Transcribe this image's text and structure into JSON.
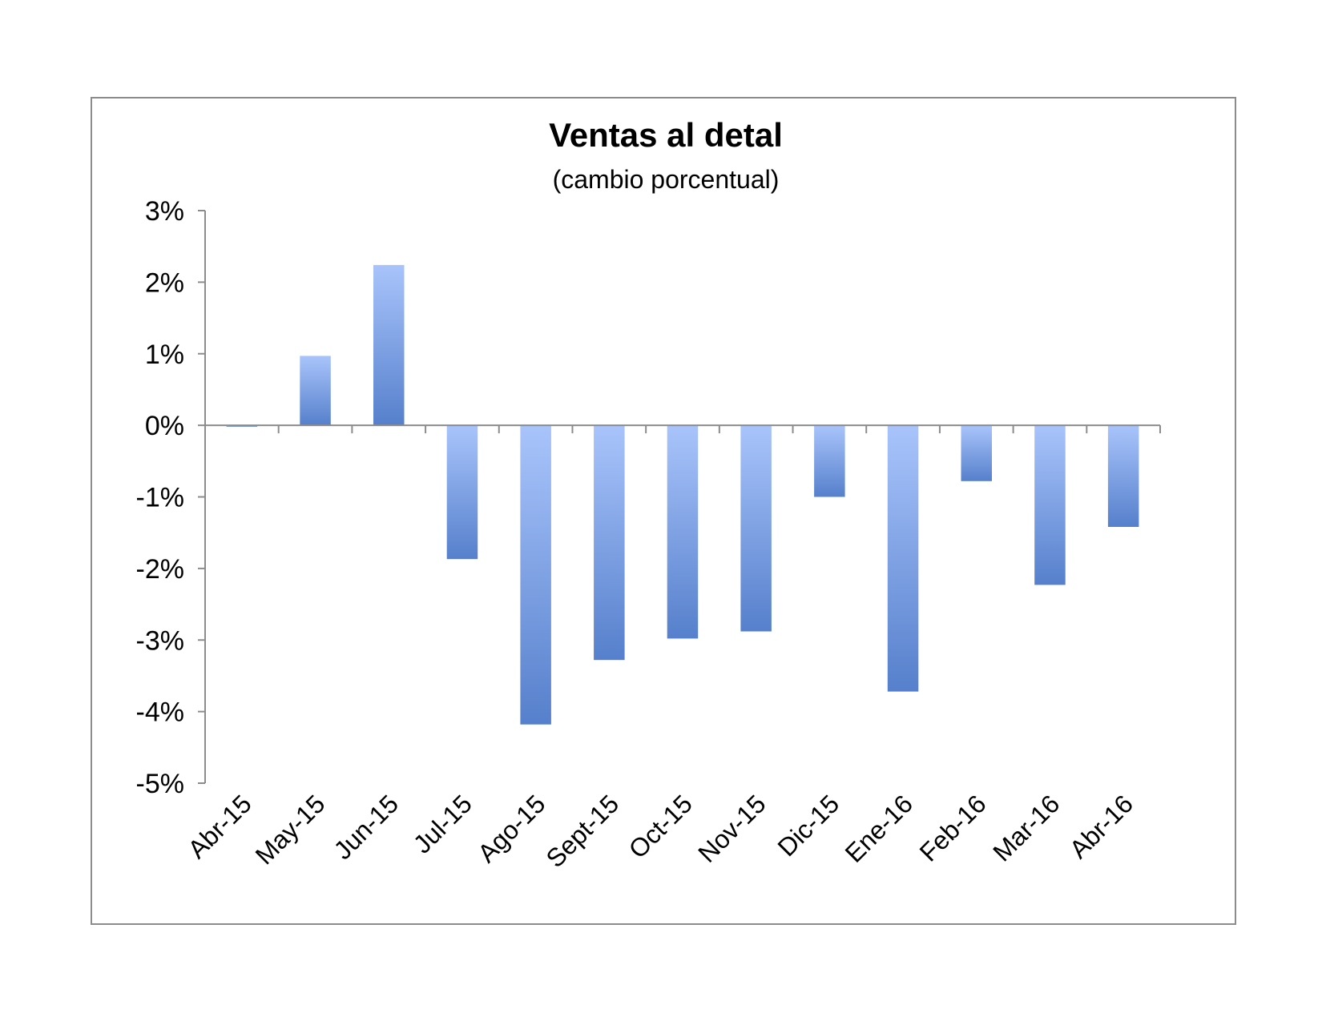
{
  "chart_data": {
    "type": "bar",
    "title": "Ventas al detal",
    "subtitle": "(cambio porcentual)",
    "xlabel": "",
    "ylabel": "",
    "categories": [
      "Abr-15",
      "May-15",
      "Jun-15",
      "Jul-15",
      "Ago-15",
      "Sept-15",
      "Oct-15",
      "Nov-15",
      "Dic-15",
      "Ene-16",
      "Feb-16",
      "Mar-16",
      "Abr-16"
    ],
    "values": [
      -0.02,
      0.97,
      2.24,
      -1.87,
      -4.18,
      -3.28,
      -2.98,
      -2.88,
      -1.0,
      -3.72,
      -0.78,
      -2.23,
      -1.42
    ],
    "ylim": [
      -5,
      3
    ],
    "yticks": [
      3,
      2,
      1,
      0,
      -1,
      -2,
      -3,
      -4,
      -5
    ],
    "ytick_labels": [
      "3%",
      "2%",
      "1%",
      "0%",
      "-1%",
      "-2%",
      "-3%",
      "-4%",
      "-5%"
    ],
    "grid": false,
    "legend": "none",
    "bar_color_light": "#a9c4fb",
    "bar_color_dark": "#5680cc",
    "axis_color": "#8c8c8c"
  }
}
